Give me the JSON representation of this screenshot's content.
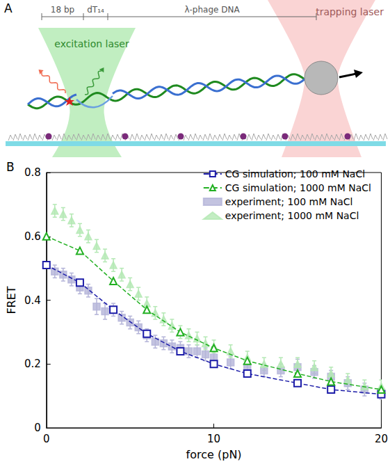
{
  "panel_a": {
    "letter": "A",
    "segments": [
      "18 bp",
      "dT₁₄",
      "λ-phage DNA"
    ],
    "excitation_label": "excitation laser",
    "trapping_label": "trapping laser"
  },
  "chart_data": {
    "type": "scatter",
    "letter": "B",
    "x_label": "force (pN)",
    "y_label": "FRET",
    "xlim": [
      0,
      20
    ],
    "xticks": [
      0,
      10,
      20
    ],
    "ylim": [
      0,
      0.8
    ],
    "yticks": [
      0,
      0.2,
      0.4,
      0.6,
      0.8
    ],
    "legend": "upper right",
    "grid": false,
    "series": [
      {
        "name": "CG simulation; 100 mM NaCl",
        "type": "line",
        "color": "#1c1ca8",
        "marker": "square_open",
        "line_style": "dashed",
        "x": [
          0,
          2,
          4,
          6,
          8,
          10,
          12,
          15,
          17,
          20
        ],
        "values": [
          0.51,
          0.455,
          0.37,
          0.295,
          0.24,
          0.2,
          0.17,
          0.14,
          0.12,
          0.105
        ]
      },
      {
        "name": "CG simulation; 1000 mM NaCl",
        "type": "line",
        "color": "#22b022",
        "marker": "triangle_open",
        "line_style": "dashed",
        "x": [
          0,
          2,
          4,
          6,
          8,
          10,
          12,
          15,
          17,
          20
        ],
        "values": [
          0.6,
          0.555,
          0.46,
          0.37,
          0.3,
          0.25,
          0.21,
          0.17,
          0.145,
          0.12
        ]
      },
      {
        "name": "experiment; 100 mM NaCl",
        "type": "scatter",
        "color": "#b4b4d8",
        "marker": "square",
        "line_style": "none",
        "x": [
          0.5,
          1,
          1.5,
          2,
          2.5,
          3,
          3.5,
          4,
          4.5,
          5,
          5.5,
          6,
          6.5,
          7,
          7.5,
          8,
          8.5,
          9,
          9.5,
          10,
          11,
          12,
          13,
          14,
          15,
          16,
          17,
          18,
          19,
          20
        ],
        "values": [
          0.49,
          0.48,
          0.465,
          0.44,
          0.43,
          0.38,
          0.365,
          0.37,
          0.345,
          0.33,
          0.315,
          0.29,
          0.27,
          0.265,
          0.255,
          0.25,
          0.24,
          0.24,
          0.23,
          0.22,
          0.205,
          0.19,
          0.18,
          0.18,
          0.19,
          0.175,
          0.16,
          0.14,
          0.12,
          0.11
        ],
        "errors": [
          0.02,
          0.02,
          0.02,
          0.02,
          0.02,
          0.025,
          0.025,
          0.02,
          0.02,
          0.02,
          0.02,
          0.02,
          0.02,
          0.02,
          0.02,
          0.02,
          0.02,
          0.02,
          0.02,
          0.02,
          0.02,
          0.02,
          0.02,
          0.02,
          0.025,
          0.02,
          0.02,
          0.02,
          0.02,
          0.02
        ]
      },
      {
        "name": "experiment; 1000 mM NaCl",
        "type": "scatter",
        "color": "#b4e8b4",
        "marker": "triangle",
        "line_style": "none",
        "x": [
          0.5,
          1,
          1.5,
          2,
          2.5,
          3,
          3.5,
          4,
          4.5,
          5,
          5.5,
          6,
          6.5,
          7,
          7.5,
          8,
          8.5,
          9,
          9.5,
          10,
          11,
          12,
          13,
          14,
          15,
          16,
          17,
          18,
          19,
          20
        ],
        "values": [
          0.68,
          0.67,
          0.65,
          0.62,
          0.6,
          0.57,
          0.54,
          0.51,
          0.48,
          0.45,
          0.42,
          0.39,
          0.36,
          0.34,
          0.32,
          0.3,
          0.29,
          0.28,
          0.265,
          0.255,
          0.24,
          0.22,
          0.2,
          0.2,
          0.2,
          0.19,
          0.17,
          0.15,
          0.13,
          0.13
        ],
        "errors": [
          0.02,
          0.02,
          0.02,
          0.02,
          0.02,
          0.02,
          0.02,
          0.02,
          0.02,
          0.02,
          0.02,
          0.02,
          0.02,
          0.02,
          0.02,
          0.02,
          0.02,
          0.02,
          0.02,
          0.02,
          0.02,
          0.02,
          0.02,
          0.02,
          0.02,
          0.02,
          0.02,
          0.02,
          0.02,
          0.02
        ]
      }
    ]
  }
}
